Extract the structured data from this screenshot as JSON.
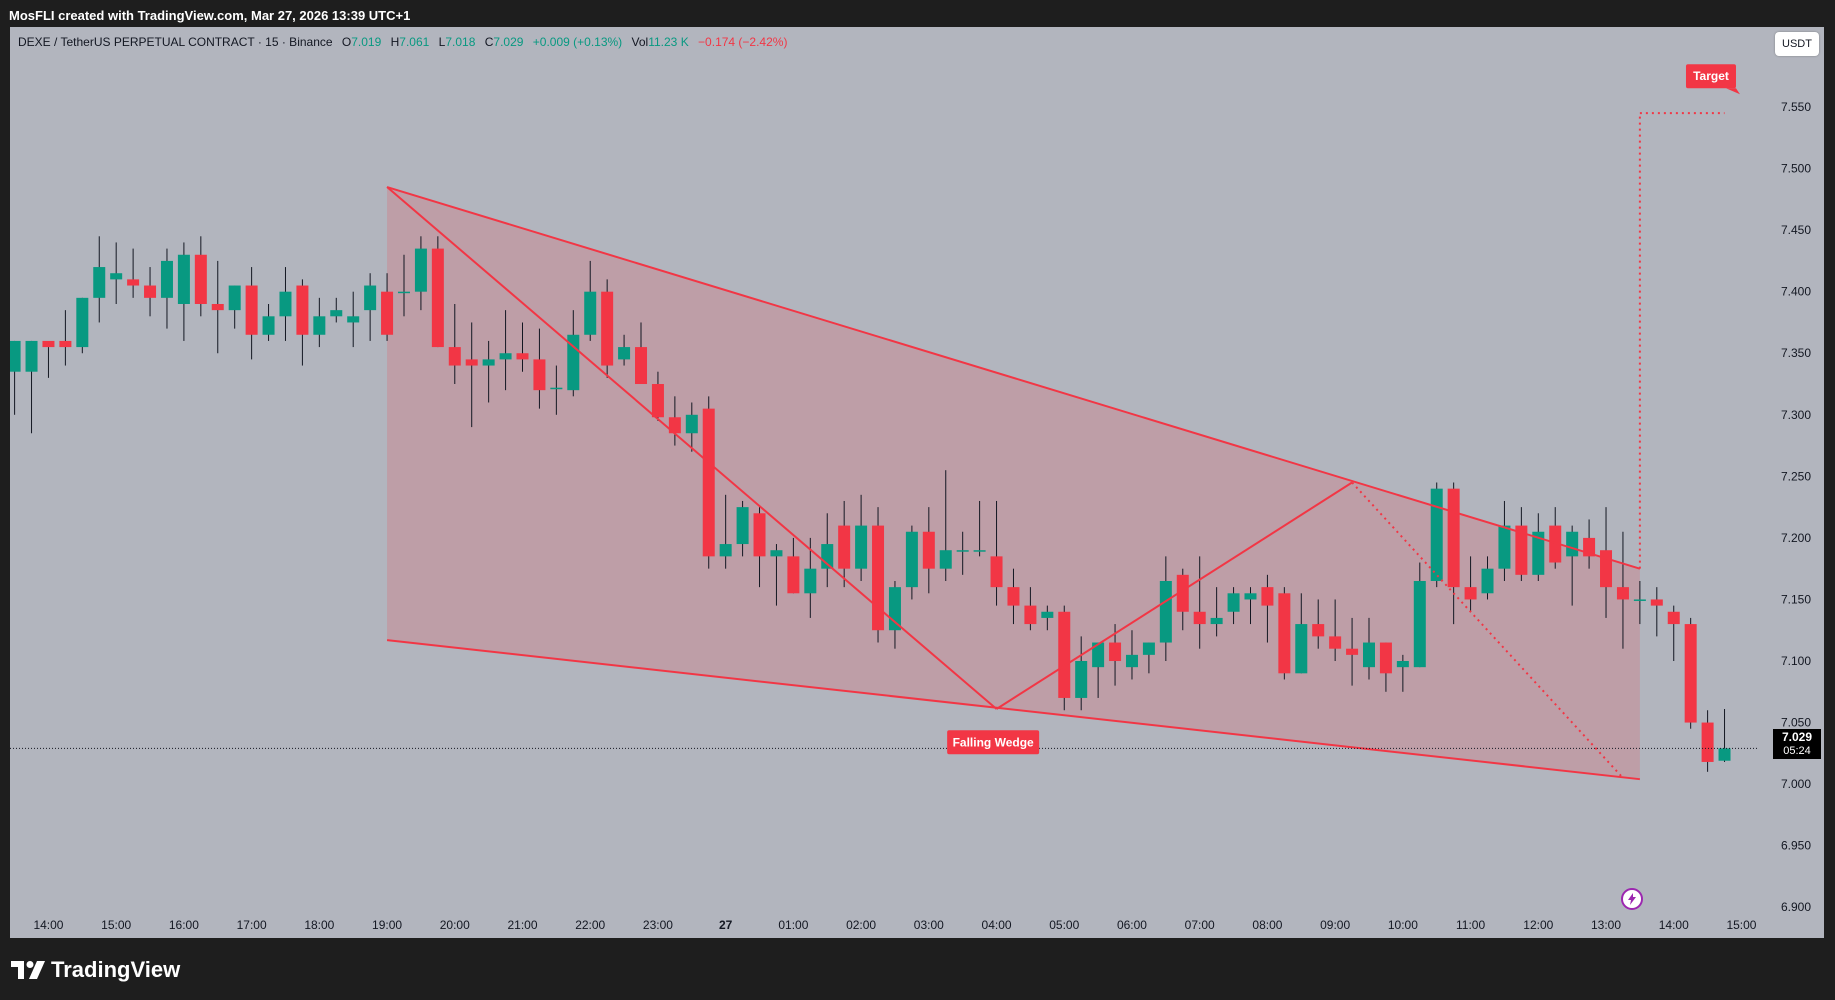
{
  "header": {
    "title": "MosFLI created with TradingView.com, Mar 27, 2026 13:39 UTC+1"
  },
  "legend": {
    "symbol": "DEXE / TetherUS PERPETUAL CONTRACT · 15 · Binance",
    "open_label": "O",
    "open": "7.019",
    "high_label": "H",
    "high": "7.061",
    "low_label": "L",
    "low": "7.018",
    "close_label": "C",
    "close": "7.029",
    "change": "+0.009 (+0.13%)",
    "vol_label": "Vol",
    "vol": "11.23 K",
    "vol_change": "−0.174 (−2.42%)"
  },
  "currency_button": "USDT",
  "price_badge": {
    "price": "7.029",
    "countdown": "05:24"
  },
  "brand": "TradingView",
  "colors": {
    "up": "#089981",
    "down": "#f23645",
    "pattern": "#f23645",
    "background": "#b2b5be"
  },
  "chart_data": {
    "type": "candlestick",
    "interval": "15m",
    "ylim": [
      6.875,
      7.615
    ],
    "y_ticks": [
      "7.550",
      "7.500",
      "7.450",
      "7.400",
      "7.350",
      "7.300",
      "7.250",
      "7.200",
      "7.150",
      "7.100",
      "7.050",
      "7.000",
      "6.950",
      "6.900"
    ],
    "x_ticks": [
      {
        "label": "14:00",
        "t": 2
      },
      {
        "label": "15:00",
        "t": 6
      },
      {
        "label": "16:00",
        "t": 10
      },
      {
        "label": "17:00",
        "t": 14
      },
      {
        "label": "18:00",
        "t": 18
      },
      {
        "label": "19:00",
        "t": 22
      },
      {
        "label": "20:00",
        "t": 26
      },
      {
        "label": "21:00",
        "t": 30
      },
      {
        "label": "22:00",
        "t": 34
      },
      {
        "label": "23:00",
        "t": 38
      },
      {
        "label": "27",
        "t": 42
      },
      {
        "label": "01:00",
        "t": 46
      },
      {
        "label": "02:00",
        "t": 50
      },
      {
        "label": "03:00",
        "t": 54
      },
      {
        "label": "04:00",
        "t": 58
      },
      {
        "label": "05:00",
        "t": 62
      },
      {
        "label": "06:00",
        "t": 66
      },
      {
        "label": "07:00",
        "t": 70
      },
      {
        "label": "08:00",
        "t": 74
      },
      {
        "label": "09:00",
        "t": 78
      },
      {
        "label": "10:00",
        "t": 82
      },
      {
        "label": "11:00",
        "t": 86
      },
      {
        "label": "12:00",
        "t": 90
      },
      {
        "label": "13:00",
        "t": 94
      },
      {
        "label": "14:00",
        "t": 98
      },
      {
        "label": "15:00",
        "t": 102
      }
    ],
    "candles": [
      [
        7.335,
        7.36,
        7.3,
        7.36
      ],
      [
        7.335,
        7.36,
        7.285,
        7.36
      ],
      [
        7.36,
        7.355,
        7.33,
        7.355
      ],
      [
        7.36,
        7.385,
        7.34,
        7.355
      ],
      [
        7.355,
        7.395,
        7.35,
        7.395
      ],
      [
        7.395,
        7.445,
        7.375,
        7.42
      ],
      [
        7.41,
        7.44,
        7.39,
        7.415
      ],
      [
        7.41,
        7.435,
        7.395,
        7.405
      ],
      [
        7.405,
        7.42,
        7.38,
        7.395
      ],
      [
        7.395,
        7.435,
        7.37,
        7.425
      ],
      [
        7.39,
        7.44,
        7.36,
        7.43
      ],
      [
        7.43,
        7.445,
        7.38,
        7.39
      ],
      [
        7.39,
        7.425,
        7.35,
        7.385
      ],
      [
        7.385,
        7.405,
        7.37,
        7.405
      ],
      [
        7.405,
        7.42,
        7.345,
        7.365
      ],
      [
        7.365,
        7.39,
        7.36,
        7.38
      ],
      [
        7.38,
        7.42,
        7.36,
        7.4
      ],
      [
        7.405,
        7.41,
        7.34,
        7.365
      ],
      [
        7.365,
        7.395,
        7.355,
        7.38
      ],
      [
        7.38,
        7.395,
        7.375,
        7.385
      ],
      [
        7.375,
        7.4,
        7.355,
        7.38
      ],
      [
        7.385,
        7.415,
        7.36,
        7.405
      ],
      [
        7.4,
        7.415,
        7.36,
        7.365
      ],
      [
        7.4,
        7.43,
        7.38,
        7.4
      ],
      [
        7.4,
        7.445,
        7.385,
        7.435
      ],
      [
        7.435,
        7.445,
        7.355,
        7.355
      ],
      [
        7.355,
        7.39,
        7.325,
        7.34
      ],
      [
        7.345,
        7.375,
        7.29,
        7.34
      ],
      [
        7.34,
        7.36,
        7.31,
        7.345
      ],
      [
        7.345,
        7.385,
        7.32,
        7.35
      ],
      [
        7.35,
        7.375,
        7.335,
        7.345
      ],
      [
        7.345,
        7.37,
        7.305,
        7.32
      ],
      [
        7.322,
        7.34,
        7.3,
        7.322
      ],
      [
        7.32,
        7.385,
        7.315,
        7.365
      ],
      [
        7.365,
        7.425,
        7.36,
        7.4
      ],
      [
        7.4,
        7.41,
        7.33,
        7.34
      ],
      [
        7.345,
        7.365,
        7.34,
        7.355
      ],
      [
        7.355,
        7.375,
        7.325,
        7.325
      ],
      [
        7.325,
        7.335,
        7.295,
        7.298
      ],
      [
        7.298,
        7.315,
        7.275,
        7.285
      ],
      [
        7.285,
        7.31,
        7.27,
        7.3
      ],
      [
        7.305,
        7.315,
        7.175,
        7.185
      ],
      [
        7.185,
        7.235,
        7.175,
        7.195
      ],
      [
        7.195,
        7.23,
        7.185,
        7.225
      ],
      [
        7.22,
        7.225,
        7.16,
        7.185
      ],
      [
        7.185,
        7.195,
        7.145,
        7.19
      ],
      [
        7.185,
        7.2,
        7.155,
        7.155
      ],
      [
        7.155,
        7.2,
        7.135,
        7.175
      ],
      [
        7.175,
        7.22,
        7.16,
        7.195
      ],
      [
        7.21,
        7.23,
        7.16,
        7.175
      ],
      [
        7.175,
        7.235,
        7.165,
        7.21
      ],
      [
        7.21,
        7.225,
        7.115,
        7.125
      ],
      [
        7.125,
        7.165,
        7.11,
        7.16
      ],
      [
        7.16,
        7.21,
        7.15,
        7.205
      ],
      [
        7.205,
        7.225,
        7.155,
        7.175
      ],
      [
        7.175,
        7.255,
        7.165,
        7.19
      ],
      [
        7.19,
        7.205,
        7.17,
        7.19
      ],
      [
        7.19,
        7.23,
        7.185,
        7.19
      ],
      [
        7.185,
        7.23,
        7.145,
        7.16
      ],
      [
        7.16,
        7.175,
        7.13,
        7.145
      ],
      [
        7.145,
        7.16,
        7.125,
        7.13
      ],
      [
        7.135,
        7.145,
        7.125,
        7.14
      ],
      [
        7.14,
        7.145,
        7.06,
        7.07
      ],
      [
        7.07,
        7.12,
        7.06,
        7.1
      ],
      [
        7.095,
        7.115,
        7.07,
        7.115
      ],
      [
        7.115,
        7.13,
        7.08,
        7.1
      ],
      [
        7.095,
        7.125,
        7.085,
        7.105
      ],
      [
        7.105,
        7.115,
        7.09,
        7.115
      ],
      [
        7.115,
        7.185,
        7.1,
        7.165
      ],
      [
        7.17,
        7.175,
        7.125,
        7.14
      ],
      [
        7.14,
        7.185,
        7.11,
        7.13
      ],
      [
        7.13,
        7.16,
        7.12,
        7.135
      ],
      [
        7.14,
        7.16,
        7.13,
        7.155
      ],
      [
        7.15,
        7.16,
        7.13,
        7.155
      ],
      [
        7.16,
        7.17,
        7.115,
        7.145
      ],
      [
        7.155,
        7.16,
        7.085,
        7.09
      ],
      [
        7.09,
        7.155,
        7.09,
        7.13
      ],
      [
        7.13,
        7.15,
        7.11,
        7.12
      ],
      [
        7.12,
        7.15,
        7.1,
        7.11
      ],
      [
        7.11,
        7.135,
        7.08,
        7.105
      ],
      [
        7.095,
        7.135,
        7.085,
        7.115
      ],
      [
        7.115,
        7.115,
        7.075,
        7.09
      ],
      [
        7.095,
        7.105,
        7.075,
        7.1
      ],
      [
        7.095,
        7.18,
        7.095,
        7.165
      ],
      [
        7.165,
        7.245,
        7.16,
        7.24
      ],
      [
        7.24,
        7.245,
        7.13,
        7.16
      ],
      [
        7.16,
        7.185,
        7.14,
        7.15
      ],
      [
        7.155,
        7.185,
        7.15,
        7.175
      ],
      [
        7.175,
        7.23,
        7.165,
        7.21
      ],
      [
        7.21,
        7.225,
        7.165,
        7.17
      ],
      [
        7.17,
        7.22,
        7.165,
        7.205
      ],
      [
        7.21,
        7.225,
        7.175,
        7.18
      ],
      [
        7.185,
        7.21,
        7.145,
        7.205
      ],
      [
        7.2,
        7.215,
        7.175,
        7.185
      ],
      [
        7.19,
        7.225,
        7.135,
        7.16
      ],
      [
        7.16,
        7.205,
        7.11,
        7.15
      ],
      [
        7.15,
        7.165,
        7.13,
        7.15
      ],
      [
        7.15,
        7.16,
        7.12,
        7.145
      ],
      [
        7.14,
        7.145,
        7.1,
        7.13
      ],
      [
        7.13,
        7.135,
        7.045,
        7.05
      ],
      [
        7.05,
        7.06,
        7.01,
        7.018
      ],
      [
        7.019,
        7.061,
        7.018,
        7.029
      ]
    ],
    "wedge": {
      "upper_line": [
        [
          22,
          7.485
        ],
        [
          96,
          7.175
        ]
      ],
      "lower_line": [
        [
          22,
          7.117
        ],
        [
          96,
          7.004
        ]
      ]
    },
    "zigzag": [
      [
        22,
        7.485
      ],
      [
        58,
        7.061
      ],
      [
        79,
        7.245
      ],
      [
        95,
        7.005
      ]
    ],
    "projection": {
      "from": [
        96,
        7.175
      ],
      "to": [
        96,
        7.545
      ],
      "end": [
        101,
        7.545
      ]
    },
    "labels": {
      "pattern": "Falling Wedge",
      "target": "Target"
    },
    "current_price": 7.029
  }
}
